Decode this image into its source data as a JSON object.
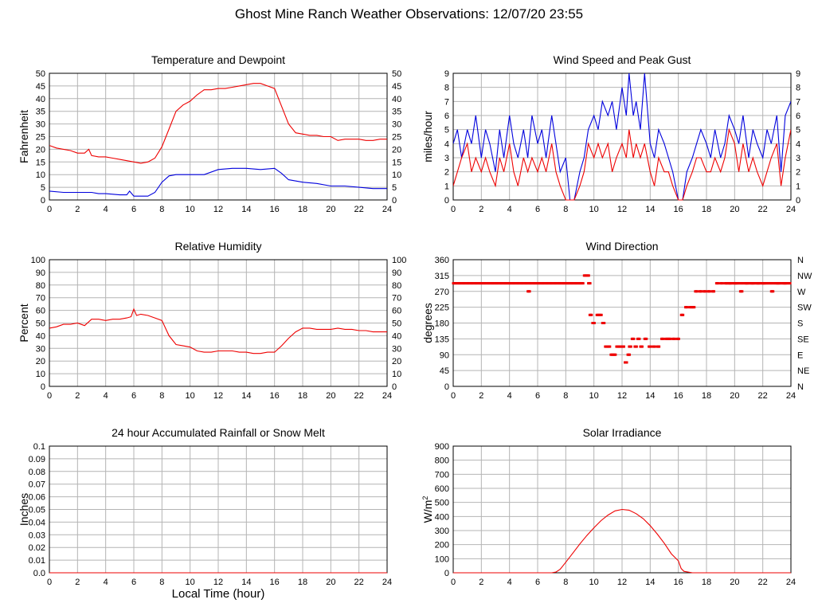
{
  "page": {
    "title": "Ghost Mine Ranch Weather Observations: 12/07/20 23:55",
    "xlabel": "Local Time (hour)"
  },
  "colors": {
    "red": "#ee0000",
    "blue": "#0000dd",
    "grid": "#b4b4b4"
  },
  "chart_data": [
    {
      "id": "temp",
      "type": "line",
      "title": "Temperature and Dewpoint",
      "ylabel": "Fahrenheit",
      "xlim": [
        0,
        24
      ],
      "ylim": [
        0,
        50
      ],
      "xticks": [
        0,
        2,
        4,
        6,
        8,
        10,
        12,
        14,
        16,
        18,
        20,
        22,
        24
      ],
      "yticks": [
        0,
        5,
        10,
        15,
        20,
        25,
        30,
        35,
        40,
        45,
        50
      ],
      "right_axis": true,
      "series": [
        {
          "color": "red",
          "x": [
            0,
            0.5,
            1,
            1.5,
            2,
            2.5,
            2.8,
            3,
            3.5,
            4,
            4.5,
            5,
            5.5,
            6,
            6.5,
            7,
            7.5,
            8,
            8.5,
            9,
            9.5,
            10,
            10.5,
            11,
            11.5,
            12,
            12.5,
            13,
            13.5,
            14,
            14.5,
            15,
            15.5,
            16,
            16.5,
            17,
            17.5,
            18,
            18.5,
            19,
            19.5,
            20,
            20.5,
            21,
            21.5,
            22,
            22.5,
            23,
            23.5,
            24
          ],
          "y": [
            21.5,
            20.5,
            20,
            19.5,
            18.5,
            18.5,
            20,
            17.5,
            17,
            17,
            16.5,
            16,
            15.5,
            15,
            14.5,
            15,
            16.5,
            21,
            28,
            35,
            37.5,
            39,
            41.5,
            43.5,
            43.5,
            44,
            44,
            44.5,
            45,
            45.5,
            46,
            46,
            45,
            44,
            37,
            30,
            26.5,
            26,
            25.5,
            25.5,
            25,
            25,
            23.5,
            24,
            24,
            24,
            23.5,
            23.5,
            24,
            24
          ]
        },
        {
          "color": "blue",
          "x": [
            0,
            1,
            2,
            3,
            3.5,
            4,
            5,
            5.5,
            5.7,
            6,
            6.5,
            7,
            7.5,
            8,
            8.5,
            9,
            10,
            11,
            12,
            13,
            14,
            15,
            16,
            16.5,
            17,
            18,
            19,
            20,
            21,
            22,
            23,
            24
          ],
          "y": [
            3.5,
            3,
            3,
            3,
            2.5,
            2.5,
            2,
            2,
            3.5,
            1.5,
            1.5,
            1.5,
            3,
            7,
            9.5,
            10,
            10,
            10,
            12,
            12.5,
            12.5,
            12,
            12.5,
            10.5,
            8,
            7,
            6.5,
            5.5,
            5.5,
            5,
            4.5,
            4.5
          ]
        }
      ]
    },
    {
      "id": "wind",
      "type": "line",
      "title": "Wind Speed and Peak Gust",
      "ylabel": "miles/hour",
      "xlim": [
        0,
        24
      ],
      "ylim": [
        0,
        9
      ],
      "xticks": [
        0,
        2,
        4,
        6,
        8,
        10,
        12,
        14,
        16,
        18,
        20,
        22,
        24
      ],
      "yticks": [
        0,
        1,
        2,
        3,
        4,
        5,
        6,
        7,
        8,
        9
      ],
      "right_axis": true,
      "series": [
        {
          "color": "blue",
          "x": [
            0,
            0.3,
            0.6,
            1,
            1.3,
            1.6,
            2,
            2.3,
            2.6,
            3,
            3.3,
            3.6,
            4,
            4.3,
            4.6,
            5,
            5.3,
            5.6,
            6,
            6.3,
            6.6,
            7,
            7.3,
            7.6,
            8,
            8.3,
            8.6,
            9,
            9.3,
            9.6,
            10,
            10.3,
            10.6,
            11,
            11.3,
            11.6,
            12,
            12.3,
            12.5,
            12.8,
            13,
            13.3,
            13.6,
            14,
            14.3,
            14.6,
            15,
            15.3,
            15.6,
            16,
            16.3,
            16.6,
            17,
            17.3,
            17.6,
            18,
            18.3,
            18.6,
            19,
            19.3,
            19.6,
            20,
            20.3,
            20.6,
            21,
            21.3,
            21.6,
            22,
            22.3,
            22.6,
            23,
            23.3,
            23.6,
            24
          ],
          "y": [
            4,
            5,
            3,
            5,
            4,
            6,
            3,
            5,
            4,
            2,
            5,
            3,
            6,
            4,
            3,
            5,
            3,
            6,
            4,
            5,
            3,
            6,
            4,
            2,
            3,
            0,
            0,
            2,
            3,
            5,
            6,
            5,
            7,
            6,
            7,
            5,
            8,
            6,
            9,
            6,
            7,
            5,
            9,
            4,
            3,
            5,
            4,
            3,
            2,
            0,
            0,
            2,
            3,
            4,
            5,
            4,
            3,
            5,
            3,
            4,
            6,
            5,
            4,
            6,
            3,
            5,
            4,
            3,
            5,
            4,
            6,
            2,
            6,
            7
          ]
        },
        {
          "color": "red",
          "x": [
            0,
            0.3,
            0.6,
            1,
            1.3,
            1.6,
            2,
            2.3,
            2.6,
            3,
            3.3,
            3.6,
            4,
            4.3,
            4.6,
            5,
            5.3,
            5.6,
            6,
            6.3,
            6.6,
            7,
            7.3,
            7.6,
            8,
            8.3,
            8.6,
            9,
            9.3,
            9.6,
            10,
            10.3,
            10.6,
            11,
            11.3,
            11.6,
            12,
            12.3,
            12.5,
            12.8,
            13,
            13.3,
            13.6,
            14,
            14.3,
            14.6,
            15,
            15.3,
            15.6,
            16,
            16.3,
            16.6,
            17,
            17.3,
            17.6,
            18,
            18.3,
            18.6,
            19,
            19.3,
            19.6,
            20,
            20.3,
            20.6,
            21,
            21.3,
            21.6,
            22,
            22.3,
            22.6,
            23,
            23.3,
            23.6,
            24
          ],
          "y": [
            1,
            2,
            3,
            4,
            2,
            3,
            2,
            3,
            2,
            1,
            3,
            2,
            4,
            2,
            1,
            3,
            2,
            3,
            2,
            3,
            2,
            4,
            2,
            1,
            0,
            0,
            0,
            1,
            2,
            4,
            3,
            4,
            3,
            4,
            2,
            3,
            4,
            3,
            5,
            3,
            4,
            3,
            4,
            2,
            1,
            3,
            2,
            2,
            1,
            0,
            0,
            1,
            2,
            3,
            3,
            2,
            2,
            3,
            2,
            3,
            5,
            4,
            2,
            4,
            2,
            3,
            2,
            1,
            2,
            3,
            4,
            1,
            3,
            5
          ]
        }
      ]
    },
    {
      "id": "rh",
      "type": "line",
      "title": "Relative Humidity",
      "ylabel": "Percent",
      "xlim": [
        0,
        24
      ],
      "ylim": [
        0,
        100
      ],
      "xticks": [
        0,
        2,
        4,
        6,
        8,
        10,
        12,
        14,
        16,
        18,
        20,
        22,
        24
      ],
      "yticks": [
        0,
        10,
        20,
        30,
        40,
        50,
        60,
        70,
        80,
        90,
        100
      ],
      "right_axis": true,
      "series": [
        {
          "color": "red",
          "x": [
            0,
            0.5,
            1,
            1.5,
            2,
            2.5,
            3,
            3.5,
            4,
            4.5,
            5,
            5.5,
            5.8,
            6,
            6.2,
            6.5,
            7,
            7.5,
            8,
            8.5,
            9,
            9.5,
            10,
            10.5,
            11,
            11.5,
            12,
            12.5,
            13,
            13.5,
            14,
            14.5,
            15,
            15.5,
            16,
            16.5,
            17,
            17.5,
            18,
            18.5,
            19,
            19.5,
            20,
            20.5,
            21,
            21.5,
            22,
            22.5,
            23,
            23.5,
            24
          ],
          "y": [
            46,
            47,
            49,
            49,
            50,
            48,
            53,
            53,
            52,
            53,
            53,
            54,
            55,
            61,
            56,
            57,
            56,
            54,
            52,
            40,
            33,
            32,
            31,
            28,
            27,
            27,
            28,
            28,
            28,
            27,
            27,
            26,
            26,
            27,
            27,
            32,
            38,
            43,
            46,
            46,
            45,
            45,
            45,
            46,
            45,
            45,
            44,
            44,
            43,
            43,
            43
          ]
        }
      ]
    },
    {
      "id": "winddir",
      "type": "scatter",
      "title": "Wind Direction",
      "ylabel": "degrees",
      "xlim": [
        0,
        24
      ],
      "ylim": [
        0,
        360
      ],
      "xticks": [
        0,
        2,
        4,
        6,
        8,
        10,
        12,
        14,
        16,
        18,
        20,
        22,
        24
      ],
      "yticks": [
        0,
        45,
        90,
        135,
        180,
        225,
        270,
        315,
        360
      ],
      "right_labels": [
        "N",
        "NE",
        "E",
        "SE",
        "S",
        "SW",
        "W",
        "NW",
        "N"
      ],
      "series": [
        {
          "color": "red",
          "x": [
            5.3,
            9.3,
            9.5,
            9.6,
            9.7,
            9.9,
            10.2,
            10.4,
            10.6,
            10.8,
            11,
            11.2,
            11.4,
            11.6,
            11.8,
            12,
            12.2,
            12.4,
            12.5,
            12.7,
            12.9,
            13.1,
            13.3,
            13.6,
            13.9,
            14.2,
            14.5,
            14.8,
            15.1,
            15.3,
            15.6,
            15.9,
            16.2,
            16.5,
            16.8,
            17.0,
            17.2,
            17.5,
            17.8,
            18.1,
            18.4,
            18.7,
            19.0,
            19.3,
            19.6,
            20.0,
            20.4,
            20.8,
            21.2,
            21.6,
            22.0,
            22.6,
            23.0,
            23.5
          ],
          "y": [
            270,
            315,
            315,
            293,
            203,
            180,
            203,
            203,
            180,
            113,
            113,
            90,
            90,
            113,
            113,
            113,
            68,
            90,
            113,
            135,
            113,
            135,
            113,
            135,
            113,
            113,
            113,
            135,
            135,
            135,
            135,
            135,
            203,
            225,
            225,
            225,
            270,
            270,
            270,
            270,
            270,
            293,
            293,
            293,
            293,
            293,
            270,
            293,
            293,
            293,
            293,
            270,
            293,
            293
          ]
        }
      ],
      "band": {
        "x_start": 0,
        "x_end": 9.3,
        "value": 293
      },
      "band2": {
        "x_start": 19.4,
        "x_end": 24,
        "value": 293
      }
    },
    {
      "id": "rain",
      "type": "line",
      "title": "24 hour Accumulated Rainfall or Snow Melt",
      "ylabel": "Inches",
      "xlim": [
        0,
        24
      ],
      "ylim": [
        0,
        0.1
      ],
      "xticks": [
        0,
        2,
        4,
        6,
        8,
        10,
        12,
        14,
        16,
        18,
        20,
        22,
        24
      ],
      "yticks": [
        0,
        0.01,
        0.02,
        0.03,
        0.04,
        0.05,
        0.06,
        0.07,
        0.08,
        0.09,
        0.1
      ],
      "ytick_labels": [
        "0.0",
        "0.01",
        "0.02",
        "0.03",
        "0.04",
        "0.05",
        "0.06",
        "0.07",
        "0.08",
        "0.09",
        "0.1"
      ],
      "right_axis": false,
      "series": [
        {
          "color": "red",
          "x": [
            0,
            24
          ],
          "y": [
            0,
            0
          ]
        }
      ]
    },
    {
      "id": "solar",
      "type": "line",
      "title": "Solar Irradiance",
      "ylabel": "W/m",
      "ylabel_sup": "2",
      "xlim": [
        0,
        24
      ],
      "ylim": [
        0,
        900
      ],
      "xticks": [
        0,
        2,
        4,
        6,
        8,
        10,
        12,
        14,
        16,
        18,
        20,
        22,
        24
      ],
      "yticks": [
        0,
        100,
        200,
        300,
        400,
        500,
        600,
        700,
        800,
        900
      ],
      "right_axis": false,
      "series": [
        {
          "color": "red",
          "x": [
            0,
            7,
            7.3,
            7.6,
            8,
            8.5,
            9,
            9.5,
            10,
            10.5,
            11,
            11.5,
            12,
            12.5,
            13,
            13.5,
            14,
            14.5,
            15,
            15.5,
            16,
            16.2,
            16.4,
            17,
            24
          ],
          "y": [
            0,
            0,
            5,
            25,
            75,
            140,
            205,
            265,
            320,
            370,
            410,
            440,
            450,
            445,
            420,
            385,
            335,
            275,
            210,
            135,
            85,
            30,
            10,
            0,
            0
          ]
        }
      ]
    }
  ]
}
